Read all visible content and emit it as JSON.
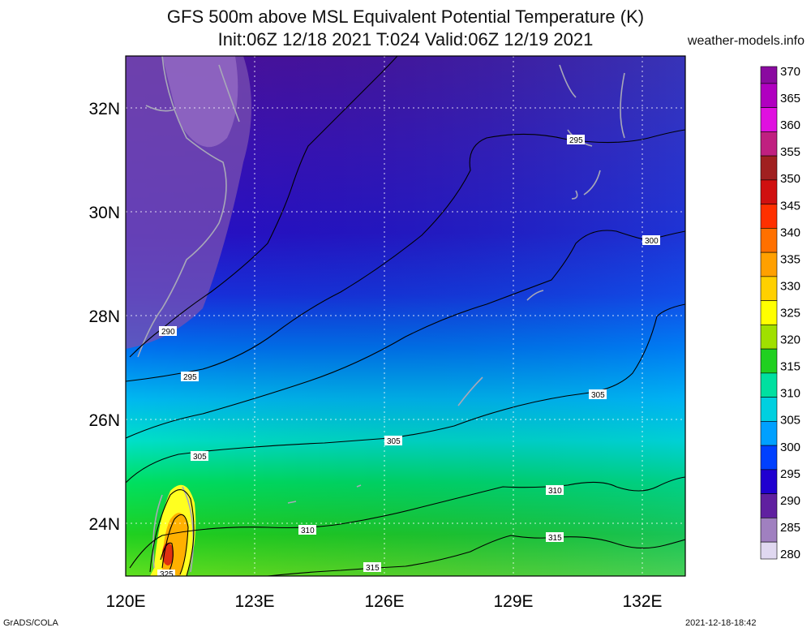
{
  "title": {
    "line1": "GFS 500m above MSL Equivalent Potential Temperature (K)",
    "line2": "Init:06Z 12/18 2021 T:024 Valid:06Z 12/19 2021"
  },
  "site": "weather-models.info",
  "footer": {
    "left": "GrADS/COLA",
    "right": "2021-12-18-18:42"
  },
  "map": {
    "lon_labels": [
      "120E",
      "123E",
      "126E",
      "129E",
      "132E"
    ],
    "lat_labels": [
      "32N",
      "30N",
      "28N",
      "26N",
      "24N"
    ],
    "contour_labels": [
      "290",
      "295",
      "295",
      "300",
      "305",
      "305",
      "305",
      "310",
      "310",
      "315",
      "315",
      "325"
    ]
  },
  "colorbar": {
    "unit": "K",
    "levels": [
      "370",
      "365",
      "360",
      "355",
      "350",
      "345",
      "340",
      "335",
      "330",
      "325",
      "320",
      "315",
      "310",
      "305",
      "300",
      "295",
      "290",
      "285",
      "280"
    ],
    "colors": [
      "#8a0aa0",
      "#b000c0",
      "#e010e0",
      "#c02080",
      "#a02020",
      "#d01010",
      "#ff3000",
      "#ff7000",
      "#ffa000",
      "#ffd000",
      "#ffff00",
      "#a0e000",
      "#20d020",
      "#00e0a0",
      "#00d0e0",
      "#00a0ff",
      "#0040ff",
      "#2000d0",
      "#6020a0",
      "#a080c0",
      "#e0d8f0"
    ]
  }
}
